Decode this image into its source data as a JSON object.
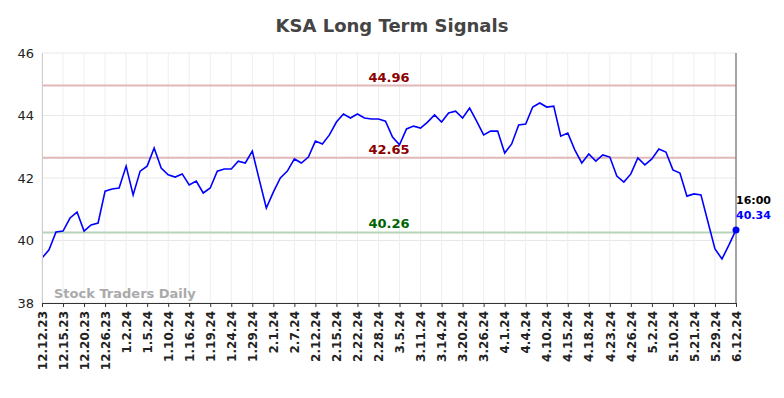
{
  "chart_data": {
    "type": "line",
    "title": "KSA Long Term Signals",
    "categories": [
      "12.12.23",
      null,
      null,
      "12.15.23",
      null,
      null,
      "12.20.23",
      null,
      null,
      "12.26.23",
      null,
      null,
      "1.2.24",
      null,
      null,
      "1.5.24",
      null,
      null,
      "1.10.24",
      null,
      null,
      "1.16.24",
      null,
      null,
      "1.19.24",
      null,
      null,
      "1.24.24",
      null,
      null,
      "1.29.24",
      null,
      null,
      "2.1.24",
      null,
      null,
      "2.7.24",
      null,
      null,
      "2.12.24",
      null,
      null,
      "2.15.24",
      null,
      null,
      "2.22.24",
      null,
      null,
      "2.28.24",
      null,
      null,
      "3.5.24",
      null,
      null,
      "3.11.24",
      null,
      null,
      "3.14.24",
      null,
      null,
      "3.20.24",
      null,
      null,
      "3.26.24",
      null,
      null,
      "4.1.24",
      null,
      null,
      "4.4.24",
      null,
      null,
      "4.10.24",
      null,
      null,
      "4.15.24",
      null,
      null,
      "4.18.24",
      null,
      null,
      "4.23.24",
      null,
      null,
      "4.26.24",
      null,
      null,
      "5.2.24",
      null,
      null,
      "5.10.24",
      null,
      null,
      "5.21.24",
      null,
      null,
      "5.29.24",
      null,
      null,
      "6.12.24"
    ],
    "values": [
      39.44,
      39.7,
      40.27,
      40.3,
      40.72,
      40.91,
      40.3,
      40.5,
      40.56,
      41.58,
      41.65,
      41.68,
      42.38,
      41.46,
      42.22,
      42.38,
      42.96,
      42.32,
      42.1,
      42.03,
      42.13,
      41.78,
      41.9,
      41.52,
      41.68,
      42.22,
      42.29,
      42.29,
      42.54,
      42.48,
      42.86,
      41.94,
      41.04,
      41.55,
      42.0,
      42.22,
      42.61,
      42.48,
      42.67,
      43.18,
      43.09,
      43.38,
      43.79,
      44.05,
      43.92,
      44.05,
      43.92,
      43.89,
      43.89,
      43.82,
      43.31,
      43.06,
      43.57,
      43.66,
      43.6,
      43.79,
      44.02,
      43.79,
      44.08,
      44.14,
      43.92,
      44.24,
      43.82,
      43.38,
      43.5,
      43.5,
      42.8,
      43.09,
      43.7,
      43.73,
      44.27,
      44.4,
      44.27,
      44.3,
      43.34,
      43.44,
      42.9,
      42.48,
      42.77,
      42.54,
      42.74,
      42.67,
      42.06,
      41.87,
      42.13,
      42.64,
      42.42,
      42.61,
      42.93,
      42.83,
      42.26,
      42.16,
      41.42,
      41.49,
      41.46,
      40.59,
      39.73,
      39.41,
      39.86,
      40.34
    ],
    "color": "#0000ff",
    "ylim": [
      38,
      46
    ],
    "yticks": [
      38,
      40,
      42,
      44,
      46
    ],
    "grid": true,
    "hlines": [
      {
        "value": 44.96,
        "color": "#8b0000"
      },
      {
        "value": 42.65,
        "color": "#8b0000"
      },
      {
        "value": 40.26,
        "color": "#006400"
      }
    ],
    "annotations": [
      "16:00",
      "Stock Traders Daily"
    ]
  }
}
